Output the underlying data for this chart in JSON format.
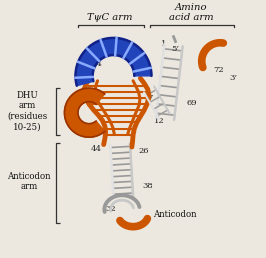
{
  "bg_color": "#ede8df",
  "blue_fill": "#2244bb",
  "blue_dark": "#112288",
  "orange_fill": "#cc5500",
  "orange_dark": "#993300",
  "gray_l": "#c8c8c8",
  "gray_m": "#999999",
  "gray_d": "#666666",
  "text_color": "#111111",
  "title_tpsi": "TψC arm",
  "title_amino": "Amino\nacid arm",
  "label_dhu": "DHU\narm\n(residues\n10-25)",
  "label_anticodon_arm": "Anticodon\narm",
  "label_anticodon": "Anticodon",
  "figsize": [
    2.66,
    2.58
  ],
  "dpi": 100
}
